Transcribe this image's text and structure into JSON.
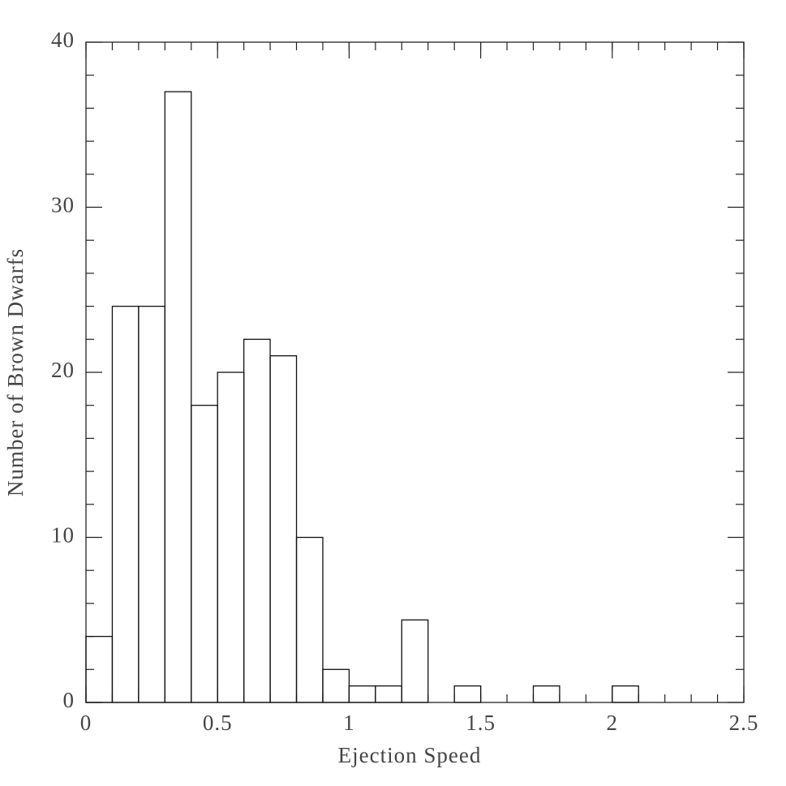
{
  "chart_data": {
    "type": "histogram",
    "x_label": "Ejection Speed",
    "y_label": "Number of Brown Dwarfs",
    "bins": [
      0,
      0.1,
      0.2,
      0.3,
      0.4,
      0.5,
      0.6,
      0.7,
      0.8,
      0.9,
      1.0,
      1.1,
      1.2,
      1.3,
      1.4,
      1.5,
      1.6,
      1.7,
      1.8,
      1.9,
      2.0,
      2.1,
      2.2,
      2.3,
      2.4,
      2.5
    ],
    "counts": [
      4,
      24,
      24,
      37,
      18,
      20,
      22,
      21,
      10,
      2,
      1,
      1,
      5,
      0,
      1,
      0,
      0,
      1,
      0,
      0,
      1,
      0,
      0,
      0,
      0
    ],
    "xlim": [
      0,
      2.5
    ],
    "xticks": [
      0,
      0.5,
      1,
      1.5,
      2,
      2.5
    ],
    "ylim": [
      0,
      40
    ],
    "yticks": [
      0,
      10,
      20,
      30,
      40
    ],
    "color": "#111111"
  }
}
